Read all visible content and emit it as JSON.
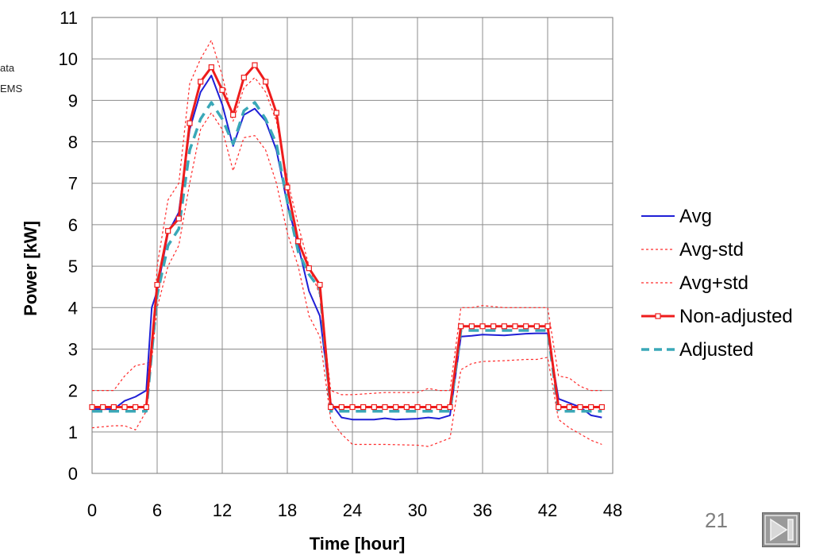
{
  "side_text": {
    "line1": "ata",
    "line2": "EMS"
  },
  "slide_number": "21",
  "icons": {
    "next": "next-slide-icon"
  },
  "chart_data": {
    "type": "line",
    "title": "",
    "xlabel": "Time [hour]",
    "ylabel": "Power [kW]",
    "xlim": [
      0,
      48
    ],
    "ylim": [
      0,
      11
    ],
    "xticks": [
      0,
      6,
      12,
      18,
      24,
      30,
      36,
      42,
      48
    ],
    "yticks": [
      0,
      1,
      2,
      3,
      4,
      5,
      6,
      7,
      8,
      9,
      10,
      11
    ],
    "grid": true,
    "legend_position": "right",
    "series": [
      {
        "name": "Avg",
        "color": "#1f1fd6",
        "style": "solid",
        "marker": false,
        "points": [
          [
            0,
            1.55
          ],
          [
            2,
            1.55
          ],
          [
            3,
            1.75
          ],
          [
            4,
            1.85
          ],
          [
            5,
            2.0
          ],
          [
            5.5,
            4.0
          ],
          [
            6,
            4.4
          ],
          [
            7,
            5.8
          ],
          [
            8,
            6.3
          ],
          [
            9,
            8.3
          ],
          [
            10,
            9.2
          ],
          [
            11,
            9.6
          ],
          [
            12,
            8.9
          ],
          [
            13,
            7.9
          ],
          [
            14,
            8.65
          ],
          [
            15,
            8.8
          ],
          [
            16,
            8.5
          ],
          [
            17,
            7.8
          ],
          [
            18,
            6.5
          ],
          [
            19,
            5.5
          ],
          [
            20,
            4.4
          ],
          [
            21,
            3.8
          ],
          [
            22,
            1.7
          ],
          [
            23,
            1.35
          ],
          [
            24,
            1.3
          ],
          [
            26,
            1.3
          ],
          [
            27,
            1.33
          ],
          [
            28,
            1.3
          ],
          [
            30,
            1.32
          ],
          [
            31,
            1.35
          ],
          [
            32,
            1.32
          ],
          [
            33,
            1.4
          ],
          [
            34,
            3.3
          ],
          [
            35,
            3.32
          ],
          [
            36,
            3.35
          ],
          [
            38,
            3.33
          ],
          [
            40,
            3.37
          ],
          [
            41,
            3.38
          ],
          [
            42,
            3.38
          ],
          [
            43,
            1.8
          ],
          [
            44,
            1.7
          ],
          [
            45,
            1.6
          ],
          [
            46,
            1.4
          ],
          [
            47,
            1.35
          ]
        ]
      },
      {
        "name": "Avg-std",
        "color": "#ff2a2a",
        "style": "dotted",
        "marker": false,
        "points": [
          [
            0,
            1.1
          ],
          [
            2,
            1.15
          ],
          [
            3,
            1.15
          ],
          [
            4,
            1.05
          ],
          [
            5,
            1.5
          ],
          [
            6,
            4.0
          ],
          [
            7,
            5.0
          ],
          [
            8,
            5.5
          ],
          [
            9,
            7.0
          ],
          [
            10,
            8.3
          ],
          [
            11,
            8.7
          ],
          [
            12,
            8.3
          ],
          [
            13,
            7.3
          ],
          [
            14,
            8.1
          ],
          [
            15,
            8.15
          ],
          [
            16,
            7.8
          ],
          [
            17,
            7.0
          ],
          [
            18,
            5.8
          ],
          [
            19,
            5.0
          ],
          [
            20,
            3.8
          ],
          [
            21,
            3.3
          ],
          [
            22,
            1.3
          ],
          [
            23,
            0.95
          ],
          [
            24,
            0.7
          ],
          [
            27,
            0.7
          ],
          [
            30,
            0.68
          ],
          [
            31,
            0.65
          ],
          [
            32,
            0.75
          ],
          [
            33,
            0.85
          ],
          [
            34,
            2.5
          ],
          [
            35,
            2.65
          ],
          [
            36,
            2.7
          ],
          [
            38,
            2.72
          ],
          [
            40,
            2.75
          ],
          [
            41,
            2.75
          ],
          [
            42,
            2.8
          ],
          [
            43,
            1.3
          ],
          [
            44,
            1.1
          ],
          [
            45,
            0.95
          ],
          [
            46,
            0.8
          ],
          [
            47,
            0.7
          ]
        ]
      },
      {
        "name": "Avg+std",
        "color": "#ff2a2a",
        "style": "dotted",
        "marker": false,
        "points": [
          [
            0,
            2.0
          ],
          [
            2,
            2.0
          ],
          [
            3,
            2.35
          ],
          [
            4,
            2.6
          ],
          [
            5,
            2.65
          ],
          [
            5.5,
            2.7
          ],
          [
            6,
            5.0
          ],
          [
            7,
            6.6
          ],
          [
            8,
            7.0
          ],
          [
            9,
            9.4
          ],
          [
            10,
            10.0
          ],
          [
            11,
            10.45
          ],
          [
            12,
            9.6
          ],
          [
            13,
            8.5
          ],
          [
            14,
            9.3
          ],
          [
            15,
            9.55
          ],
          [
            16,
            9.2
          ],
          [
            17,
            8.5
          ],
          [
            18,
            7.1
          ],
          [
            19,
            6.0
          ],
          [
            20,
            5.0
          ],
          [
            21,
            4.3
          ],
          [
            22,
            2.0
          ],
          [
            23,
            1.9
          ],
          [
            24,
            1.9
          ],
          [
            27,
            1.95
          ],
          [
            30,
            1.95
          ],
          [
            31,
            2.05
          ],
          [
            32,
            2.0
          ],
          [
            33,
            2.0
          ],
          [
            34,
            4.0
          ],
          [
            35,
            4.0
          ],
          [
            36,
            4.05
          ],
          [
            38,
            4.0
          ],
          [
            40,
            4.0
          ],
          [
            41,
            4.0
          ],
          [
            42,
            4.0
          ],
          [
            43,
            2.35
          ],
          [
            44,
            2.3
          ],
          [
            45,
            2.1
          ],
          [
            46,
            2.0
          ],
          [
            47,
            2.0
          ]
        ]
      },
      {
        "name": "Non-adjusted",
        "color": "#ee1c1c",
        "style": "solid-thick",
        "marker": true,
        "points": [
          [
            0,
            1.6
          ],
          [
            1,
            1.6
          ],
          [
            2,
            1.6
          ],
          [
            3,
            1.6
          ],
          [
            4,
            1.6
          ],
          [
            5,
            1.6
          ],
          [
            6,
            4.55
          ],
          [
            7,
            5.85
          ],
          [
            8,
            6.15
          ],
          [
            9,
            8.45
          ],
          [
            10,
            9.45
          ],
          [
            11,
            9.8
          ],
          [
            12,
            9.25
          ],
          [
            13,
            8.65
          ],
          [
            14,
            9.55
          ],
          [
            15,
            9.85
          ],
          [
            16,
            9.45
          ],
          [
            17,
            8.7
          ],
          [
            18,
            6.9
          ],
          [
            19,
            5.6
          ],
          [
            20,
            4.95
          ],
          [
            21,
            4.55
          ],
          [
            22,
            1.6
          ],
          [
            23,
            1.6
          ],
          [
            24,
            1.6
          ],
          [
            25,
            1.6
          ],
          [
            26,
            1.6
          ],
          [
            27,
            1.6
          ],
          [
            28,
            1.6
          ],
          [
            29,
            1.6
          ],
          [
            30,
            1.6
          ],
          [
            31,
            1.6
          ],
          [
            32,
            1.6
          ],
          [
            33,
            1.6
          ],
          [
            34,
            3.55
          ],
          [
            35,
            3.55
          ],
          [
            36,
            3.55
          ],
          [
            37,
            3.55
          ],
          [
            38,
            3.55
          ],
          [
            39,
            3.55
          ],
          [
            40,
            3.55
          ],
          [
            41,
            3.55
          ],
          [
            42,
            3.55
          ],
          [
            43,
            1.6
          ],
          [
            44,
            1.6
          ],
          [
            45,
            1.6
          ],
          [
            46,
            1.6
          ],
          [
            47,
            1.6
          ]
        ]
      },
      {
        "name": "Adjusted",
        "color": "#3aa8b8",
        "style": "dashed",
        "marker": false,
        "points": [
          [
            0,
            1.5
          ],
          [
            5,
            1.5
          ],
          [
            6,
            4.3
          ],
          [
            7,
            5.5
          ],
          [
            8,
            5.9
          ],
          [
            9,
            7.8
          ],
          [
            10,
            8.55
          ],
          [
            11,
            8.95
          ],
          [
            12,
            8.55
          ],
          [
            13,
            7.95
          ],
          [
            14,
            8.75
          ],
          [
            15,
            8.95
          ],
          [
            16,
            8.55
          ],
          [
            17,
            7.95
          ],
          [
            18,
            6.55
          ],
          [
            19,
            5.35
          ],
          [
            20,
            4.8
          ],
          [
            21,
            4.45
          ],
          [
            22,
            1.5
          ],
          [
            24,
            1.5
          ],
          [
            27,
            1.5
          ],
          [
            30,
            1.5
          ],
          [
            33,
            1.5
          ],
          [
            34,
            3.45
          ],
          [
            36,
            3.45
          ],
          [
            38,
            3.45
          ],
          [
            40,
            3.45
          ],
          [
            42,
            3.45
          ],
          [
            43,
            1.5
          ],
          [
            47,
            1.5
          ]
        ]
      }
    ]
  }
}
